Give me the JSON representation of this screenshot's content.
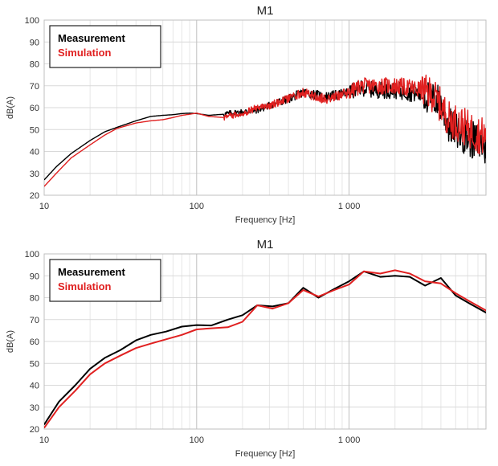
{
  "chart_data": [
    {
      "type": "line",
      "title": "M1",
      "xlabel": "Frequency [Hz]",
      "ylabel": "dB(A)",
      "xscale": "log",
      "xlim": [
        10,
        7900
      ],
      "ylim": [
        20,
        100
      ],
      "yticks": [
        20,
        30,
        40,
        50,
        60,
        70,
        80,
        90,
        100
      ],
      "xticks": [
        10,
        100,
        1000
      ],
      "xtick_labels": [
        "10",
        "100",
        "1 000"
      ],
      "grid": true,
      "legend": {
        "position": "top-left",
        "entries": [
          "Measurement",
          "Simulation"
        ]
      },
      "series": [
        {
          "name": "Measurement",
          "color": "#000000",
          "noisy_from_hz": 150,
          "x": [
            10,
            12,
            15,
            20,
            25,
            30,
            40,
            50,
            60,
            70,
            80,
            90,
            100,
            120,
            150,
            200,
            250,
            300,
            400,
            500,
            600,
            700,
            800,
            1000,
            1200,
            1500,
            2000,
            2500,
            3000,
            3500,
            3900,
            4500,
            5500,
            6500,
            7500,
            7900
          ],
          "y": [
            27,
            33,
            39,
            45,
            49,
            51,
            54,
            56,
            56.5,
            56.8,
            57.3,
            57.5,
            57.3,
            56.5,
            57,
            58,
            59,
            61,
            64,
            67,
            66,
            65,
            65.5,
            67,
            69,
            68,
            68,
            67,
            66,
            64,
            63,
            52,
            48,
            45,
            43,
            41
          ]
        },
        {
          "name": "Simulation",
          "color": "#e02020",
          "noisy_from_hz": 150,
          "x": [
            10,
            12,
            15,
            20,
            25,
            30,
            40,
            50,
            60,
            70,
            80,
            90,
            100,
            120,
            150,
            200,
            250,
            300,
            400,
            500,
            600,
            700,
            800,
            1000,
            1200,
            1500,
            2000,
            2500,
            3000,
            3500,
            3900,
            4500,
            5500,
            6500,
            7500,
            7900
          ],
          "y": [
            24,
            30,
            37,
            43,
            47.5,
            50.5,
            53,
            54,
            54.5,
            55.5,
            56.5,
            57,
            57.5,
            56,
            55.5,
            57.5,
            60,
            61,
            64,
            67,
            65,
            64,
            65,
            67,
            70,
            70,
            70,
            69,
            68,
            66,
            62,
            55,
            52,
            49,
            47,
            46
          ]
        }
      ]
    },
    {
      "type": "line",
      "title": "M1",
      "xlabel": "Frequency [Hz]",
      "ylabel": "dB(A)",
      "xscale": "log",
      "xlim": [
        10,
        7900
      ],
      "ylim": [
        20,
        100
      ],
      "yticks": [
        20,
        30,
        40,
        50,
        60,
        70,
        80,
        90,
        100
      ],
      "xticks": [
        10,
        100,
        1000
      ],
      "xtick_labels": [
        "10",
        "100",
        "1 000"
      ],
      "grid": true,
      "legend": {
        "position": "top-left",
        "entries": [
          "Measurement",
          "Simulation"
        ]
      },
      "series": [
        {
          "name": "Measurement",
          "color": "#000000",
          "x": [
            10,
            12.5,
            16,
            20,
            25,
            31.5,
            40,
            50,
            63,
            80,
            100,
            125,
            160,
            200,
            250,
            315,
            400,
            500,
            630,
            800,
            1000,
            1250,
            1600,
            2000,
            2500,
            3150,
            4000,
            5000,
            6300,
            8000
          ],
          "y": [
            22,
            32.5,
            40,
            47.5,
            52.5,
            56,
            60.5,
            63,
            64.5,
            66.8,
            67.5,
            67.3,
            70,
            72,
            76.5,
            76,
            77.5,
            84.5,
            80,
            84,
            87.5,
            92,
            89.5,
            90,
            89.5,
            85.5,
            89,
            81,
            77,
            73
          ]
        },
        {
          "name": "Simulation",
          "color": "#e02020",
          "x": [
            10,
            12.5,
            16,
            20,
            25,
            31.5,
            40,
            50,
            63,
            80,
            100,
            125,
            160,
            200,
            250,
            315,
            400,
            500,
            630,
            800,
            1000,
            1250,
            1600,
            2000,
            2500,
            3150,
            4000,
            5000,
            6300,
            8000
          ],
          "y": [
            20.5,
            30,
            37.5,
            45,
            50,
            53.5,
            57,
            59,
            61,
            63,
            65.5,
            66,
            66.5,
            69,
            76.5,
            75,
            77.5,
            83.5,
            80.5,
            83.5,
            86,
            92,
            91,
            92.5,
            91,
            87.5,
            86.5,
            82,
            78,
            74
          ]
        }
      ]
    }
  ]
}
